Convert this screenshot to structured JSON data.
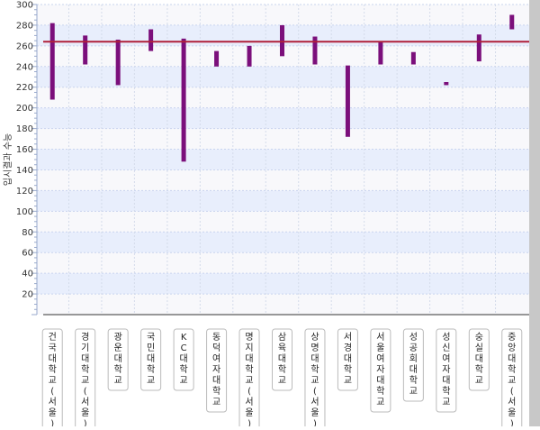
{
  "chart_data": {
    "type": "bar",
    "subtype": "floating-range",
    "ylabel": "입시결과 수능",
    "xlabel": "",
    "ylim": [
      0,
      300
    ],
    "yticks": [
      20,
      40,
      60,
      80,
      100,
      120,
      140,
      160,
      180,
      200,
      220,
      240,
      260,
      280,
      300
    ],
    "grid": true,
    "reference_line": {
      "value": 264,
      "color": "#b0203a"
    },
    "bar_color": "#7b0f7b",
    "categories": [
      "건국대학교(서울)",
      "경기대학교(서울)",
      "광운대학교",
      "국민대학교",
      "KC대학교",
      "동덕여자대학교",
      "명지대학교(서울)",
      "삼육대학교",
      "상명대학교(서울)",
      "서경대학교",
      "서울여자대학교",
      "성공회대학교",
      "성신여자대학교",
      "숭실대학교",
      "중앙대학교(서울)"
    ],
    "ranges": [
      [
        208,
        282
      ],
      [
        242,
        270
      ],
      [
        222,
        266
      ],
      [
        255,
        276
      ],
      [
        148,
        267
      ],
      [
        240,
        255
      ],
      [
        240,
        260
      ],
      [
        250,
        280
      ],
      [
        242,
        269
      ],
      [
        172,
        241
      ],
      [
        242,
        264
      ],
      [
        242,
        254
      ],
      [
        222,
        225
      ],
      [
        245,
        271
      ],
      [
        276,
        290
      ]
    ]
  }
}
